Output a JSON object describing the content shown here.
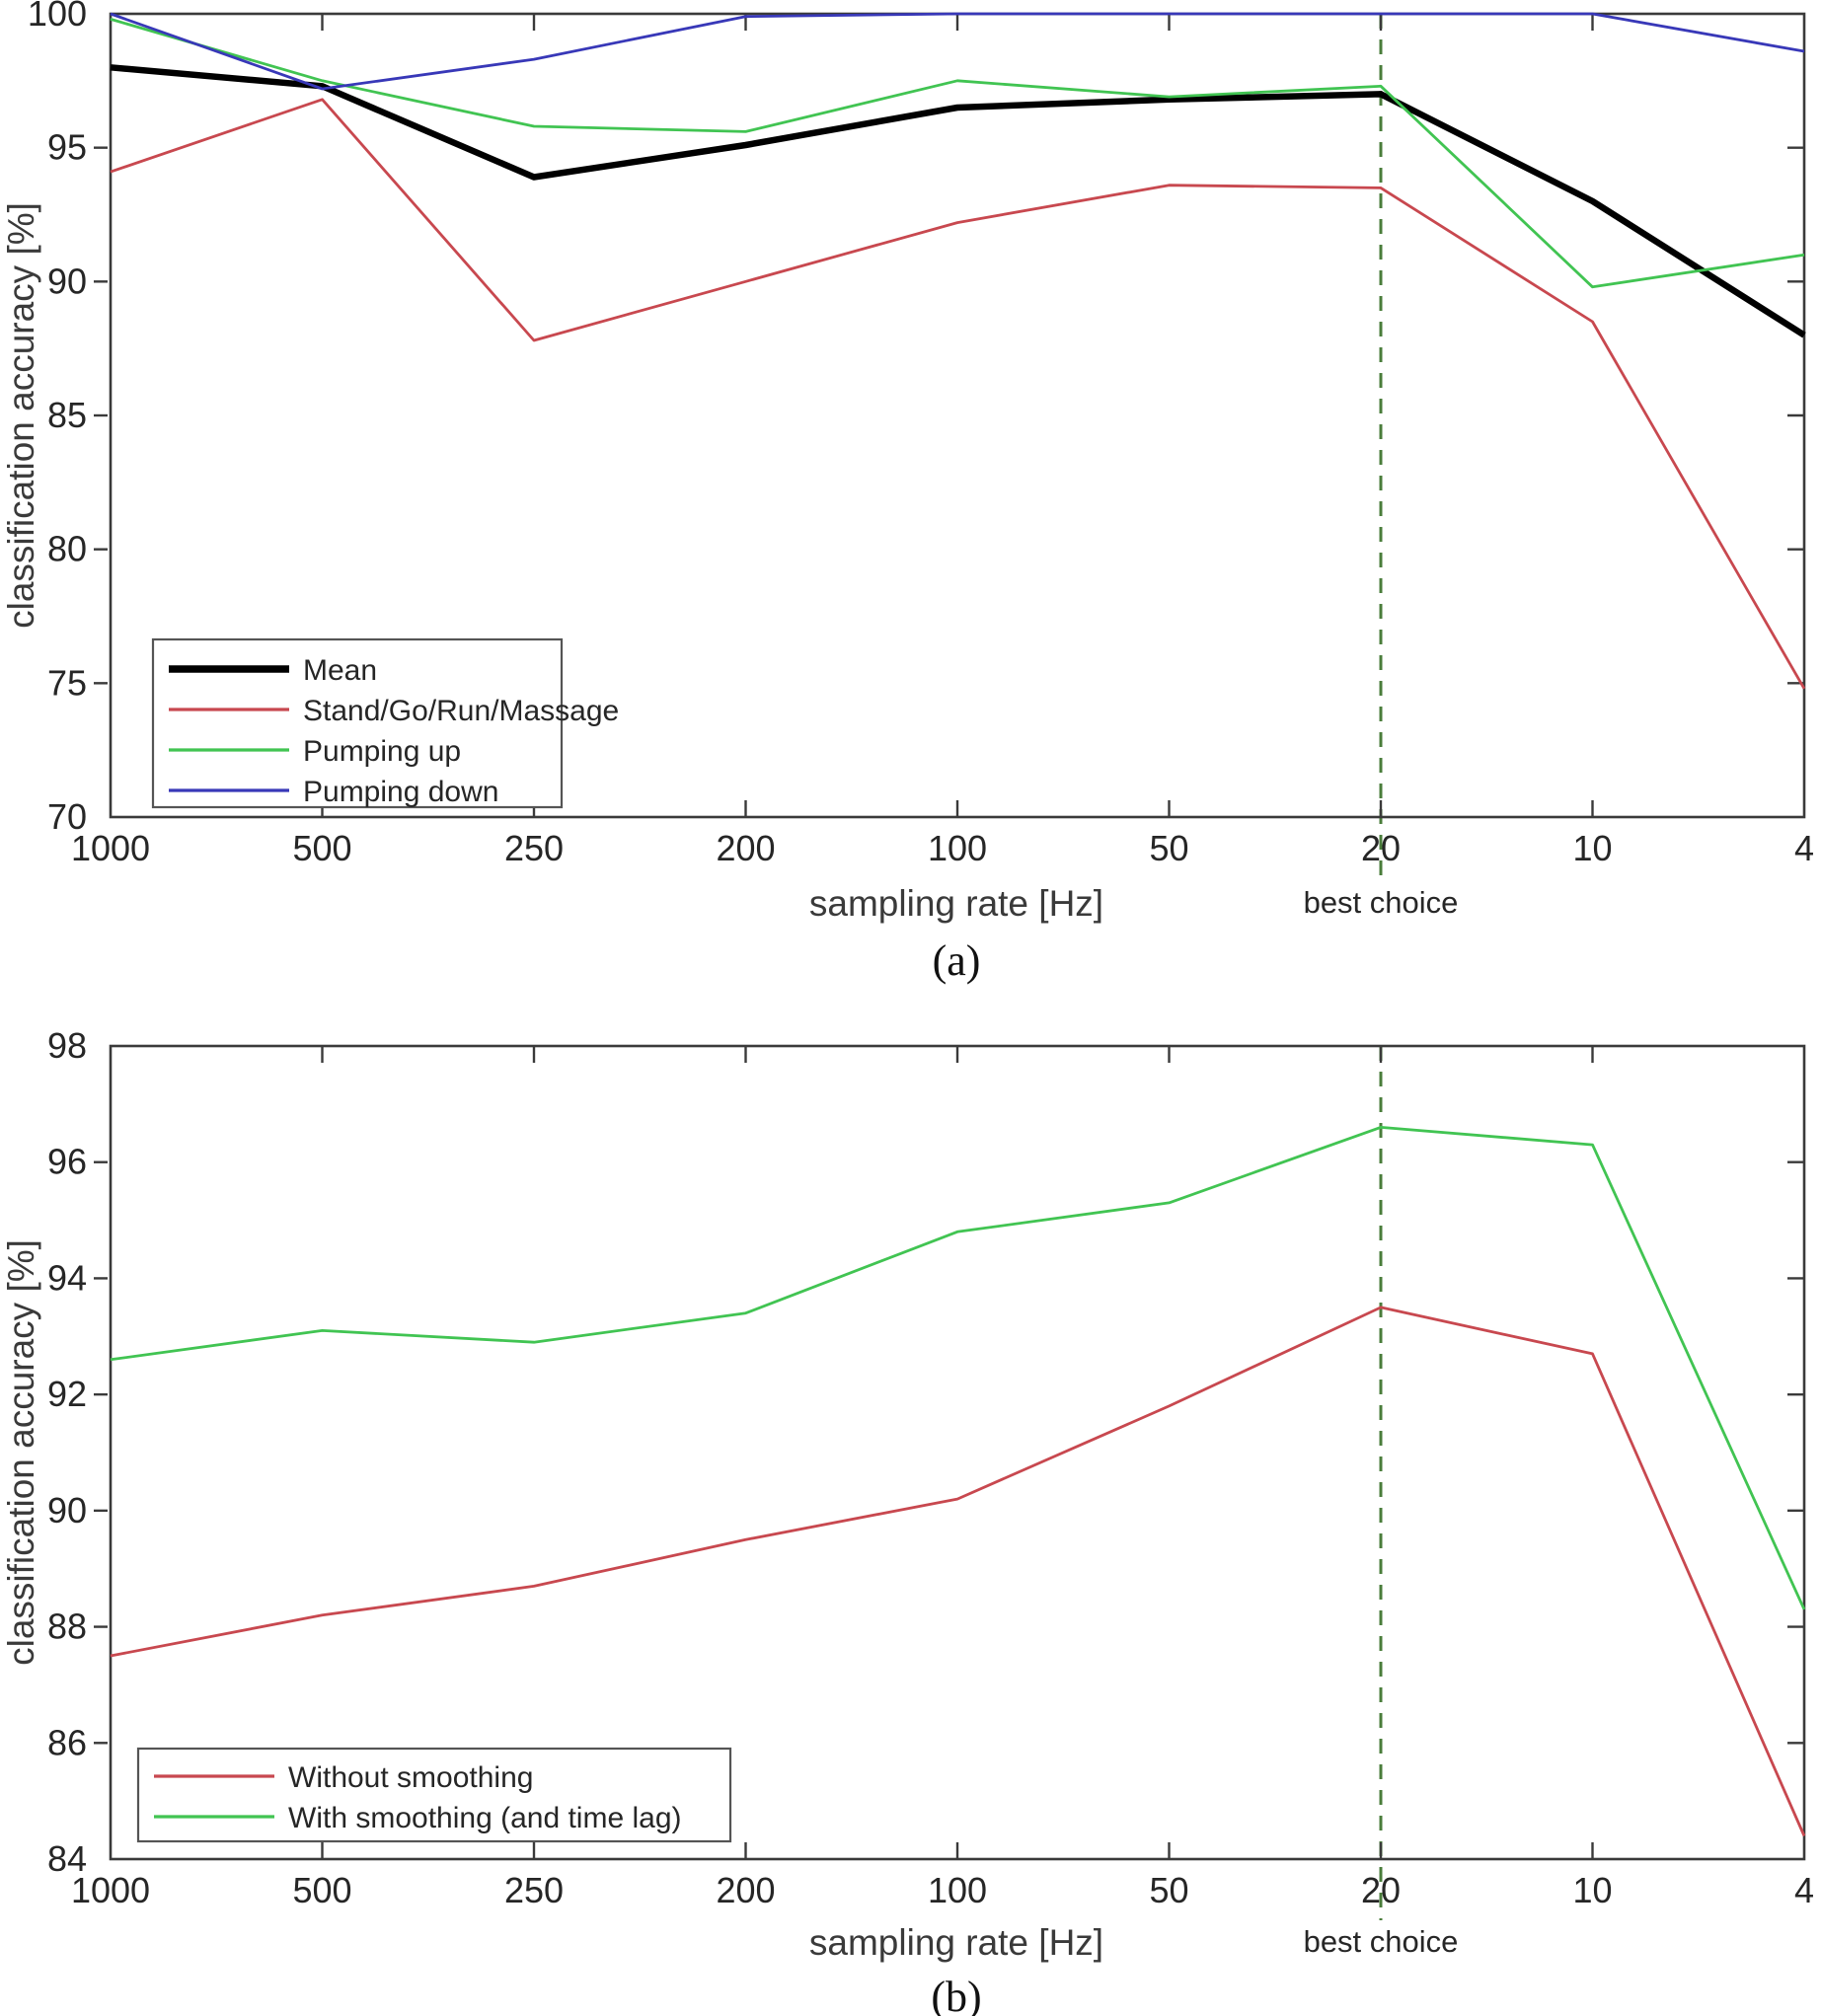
{
  "figure": {
    "background": "#ffffff",
    "axis_color": "#3a3a3a",
    "text_color": "#262626"
  },
  "charts": [
    {
      "caption": "(a)",
      "xlabel": "sampling rate [Hz]",
      "ylabel": "classification accuracy [%]",
      "annotation": {
        "label": "best choice",
        "category": "20",
        "line_color": "#4a7d3b",
        "text_color": "#55a045"
      },
      "chart_data": {
        "type": "line",
        "categories": [
          "1000",
          "500",
          "250",
          "200",
          "100",
          "50",
          "20",
          "10",
          "4"
        ],
        "ylim": [
          70,
          100
        ],
        "yticks": [
          70,
          75,
          80,
          85,
          90,
          95,
          100
        ],
        "grid": false,
        "legend_position": "lower-left",
        "series": [
          {
            "name": "Mean",
            "color": "#000000",
            "width": 6.5,
            "values": [
              98.0,
              97.3,
              93.9,
              95.1,
              96.5,
              96.8,
              97.0,
              93.0,
              88.0
            ]
          },
          {
            "name": "Stand/Go/Run/Massage",
            "color": "#c8484f",
            "width": 2.8,
            "values": [
              94.1,
              96.8,
              87.8,
              90.0,
              92.2,
              93.6,
              93.5,
              88.5,
              74.8
            ]
          },
          {
            "name": "Pumping up",
            "color": "#41c452",
            "width": 2.8,
            "values": [
              99.8,
              97.5,
              95.8,
              95.6,
              97.5,
              96.9,
              97.3,
              89.8,
              91.0
            ]
          },
          {
            "name": "Pumping down",
            "color": "#3838b8",
            "width": 2.8,
            "values": [
              100.0,
              97.2,
              98.3,
              99.9,
              100.0,
              100.0,
              100.0,
              100.0,
              98.6
            ]
          }
        ]
      }
    },
    {
      "caption": "(b)",
      "xlabel": "sampling rate [Hz]",
      "ylabel": "classification accuracy [%]",
      "annotation": {
        "label": "best choice",
        "category": "20",
        "line_color": "#4a7d3b",
        "text_color": "#55a045"
      },
      "chart_data": {
        "type": "line",
        "categories": [
          "1000",
          "500",
          "250",
          "200",
          "100",
          "50",
          "20",
          "10",
          "4"
        ],
        "ylim": [
          84,
          98
        ],
        "yticks": [
          84,
          86,
          88,
          90,
          92,
          94,
          96,
          98
        ],
        "grid": false,
        "legend_position": "lower-left",
        "series": [
          {
            "name": "Without smoothing",
            "color": "#c8484f",
            "width": 2.8,
            "values": [
              87.5,
              88.2,
              88.7,
              89.5,
              90.2,
              91.8,
              93.5,
              92.7,
              84.4
            ]
          },
          {
            "name": "With smoothing (and time lag)",
            "color": "#41c452",
            "width": 2.8,
            "values": [
              92.6,
              93.1,
              92.9,
              93.4,
              94.8,
              95.3,
              96.6,
              96.3,
              88.3
            ]
          }
        ]
      }
    }
  ]
}
